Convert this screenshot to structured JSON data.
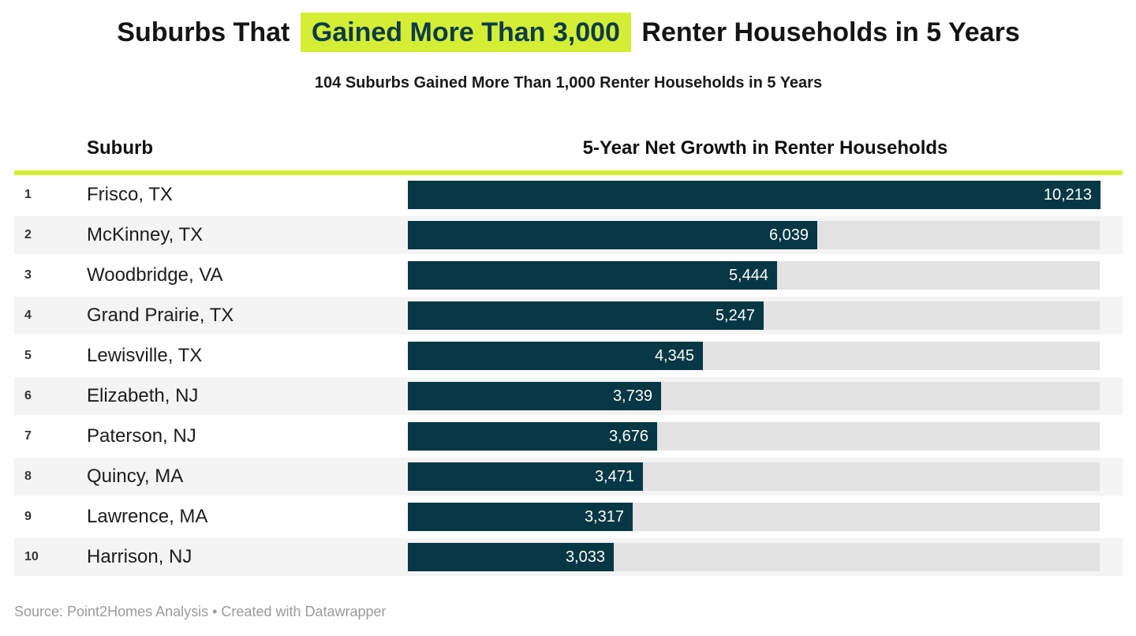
{
  "title": {
    "prefix": "Suburbs That",
    "highlight": "Gained More Than 3,000",
    "suffix": "Renter Households in 5 Years"
  },
  "subtitle": "104 Suburbs Gained More Than 1,000 Renter Households in 5 Years",
  "columns": {
    "suburb": "Suburb",
    "growth": "5-Year Net Growth in Renter Households"
  },
  "chart_data": {
    "type": "bar",
    "orientation": "horizontal",
    "title": "Suburbs That Gained More Than 3,000 Renter Households in 5 Years",
    "subtitle": "104 Suburbs Gained More Than 1,000 Renter Households in 5 Years",
    "xlabel": "5-Year Net Growth in Renter Households",
    "ylabel": "Suburb",
    "xlim": [
      0,
      10213
    ],
    "grid": false,
    "legend": false,
    "categories": [
      "Frisco, TX",
      "McKinney, TX",
      "Woodbridge, VA",
      "Grand Prairie, TX",
      "Lewisville, TX",
      "Elizabeth, NJ",
      "Paterson, NJ",
      "Quincy, MA",
      "Lawrence, MA",
      "Harrison, NJ"
    ],
    "values": [
      10213,
      6039,
      5444,
      5247,
      4345,
      3739,
      3676,
      3471,
      3317,
      3033
    ],
    "rows": [
      {
        "rank": "1",
        "suburb": "Frisco, TX",
        "value": 10213,
        "label": "10,213"
      },
      {
        "rank": "2",
        "suburb": "McKinney, TX",
        "value": 6039,
        "label": "6,039"
      },
      {
        "rank": "3",
        "suburb": "Woodbridge, VA",
        "value": 5444,
        "label": "5,444"
      },
      {
        "rank": "4",
        "suburb": "Grand Prairie, TX",
        "value": 5247,
        "label": "5,247"
      },
      {
        "rank": "5",
        "suburb": "Lewisville, TX",
        "value": 4345,
        "label": "4,345"
      },
      {
        "rank": "6",
        "suburb": "Elizabeth, NJ",
        "value": 3739,
        "label": "3,739"
      },
      {
        "rank": "7",
        "suburb": "Paterson, NJ",
        "value": 3676,
        "label": "3,676"
      },
      {
        "rank": "8",
        "suburb": "Quincy, MA",
        "value": 3471,
        "label": "3,471"
      },
      {
        "rank": "9",
        "suburb": "Lawrence, MA",
        "value": 3317,
        "label": "3,317"
      },
      {
        "rank": "10",
        "suburb": "Harrison, NJ",
        "value": 3033,
        "label": "3,033"
      }
    ]
  },
  "footer": "Source: Point2Homes Analysis • Created with Datawrapper",
  "colors": {
    "accent": "#d4ee35",
    "bar": "#063744",
    "track": "#e3e3e3",
    "stripe": "#f4f4f4",
    "highlight_text": "#0c3b49",
    "value_text": "#ffffff",
    "footer_text": "#9b9b9b"
  }
}
